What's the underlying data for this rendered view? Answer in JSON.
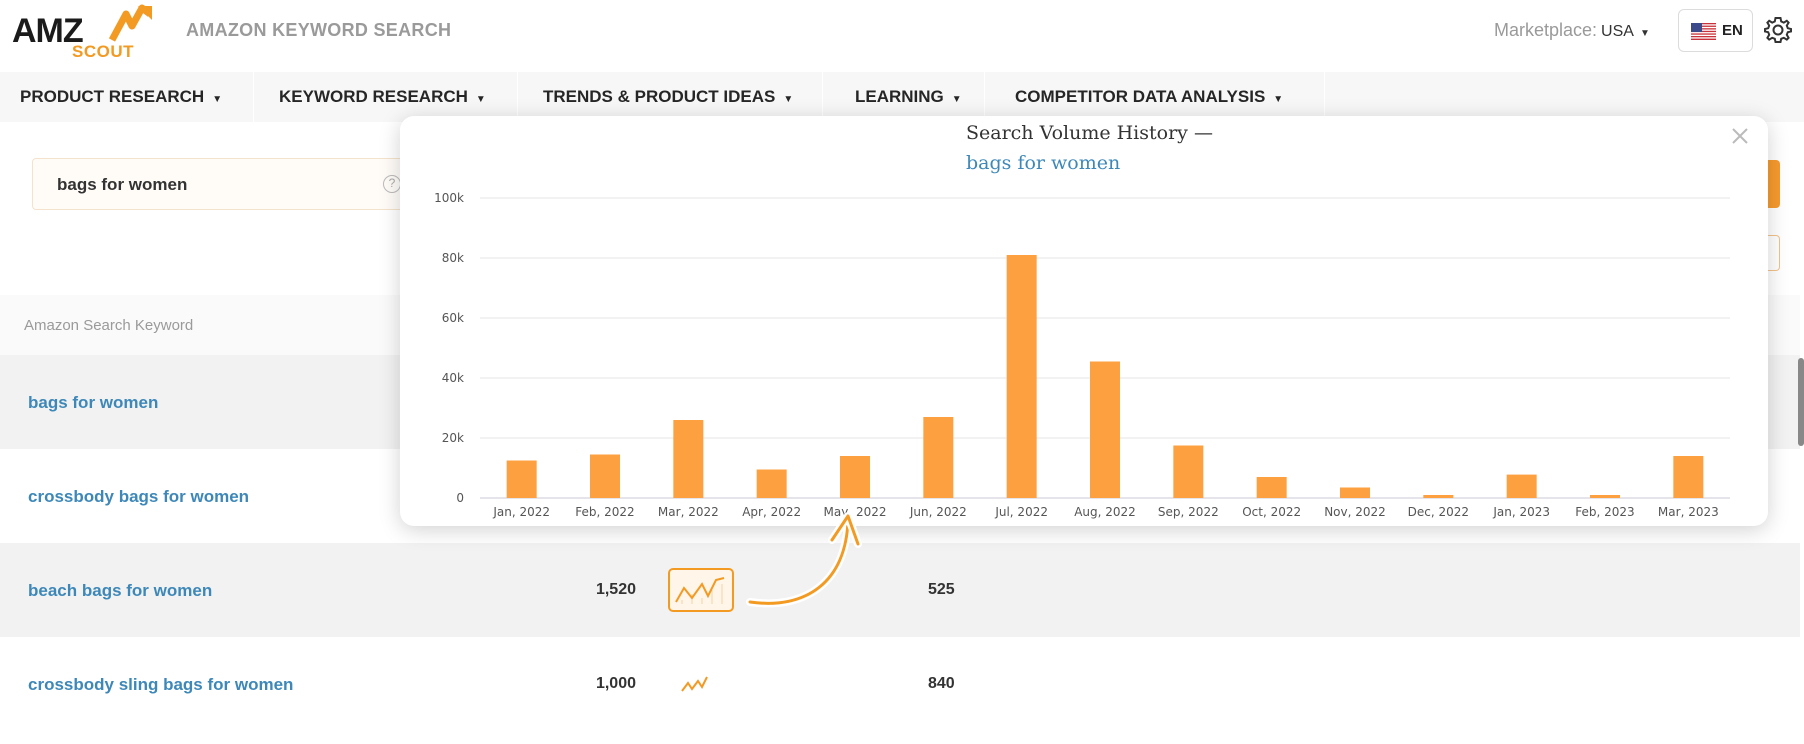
{
  "header": {
    "logo_amz": "AMZ",
    "logo_scout": "SCOUT",
    "app_title": "AMAZON KEYWORD SEARCH",
    "marketplace_label": "Marketplace:",
    "marketplace_value": "USA",
    "language": "EN",
    "icons": [
      "us-flag-icon",
      "gear-icon"
    ]
  },
  "nav": {
    "items": [
      {
        "label": "PRODUCT RESEARCH"
      },
      {
        "label": "KEYWORD RESEARCH"
      },
      {
        "label": "TRENDS & PRODUCT IDEAS"
      },
      {
        "label": "LEARNING"
      },
      {
        "label": "COMPETITOR DATA ANALYSIS"
      }
    ]
  },
  "search": {
    "value": "bags for women",
    "help": "?"
  },
  "table": {
    "column_header": "Amazon Search Keyword",
    "rows": [
      {
        "keyword": "bags for women",
        "volume": "",
        "value2": ""
      },
      {
        "keyword": "crossbody bags for women",
        "volume": "",
        "value2": ""
      },
      {
        "keyword": "beach bags for women",
        "volume": "1,520",
        "value2": "525"
      },
      {
        "keyword": "crossbody sling bags for women",
        "volume": "1,000",
        "value2": "840"
      }
    ]
  },
  "popup": {
    "title": "Search Volume History —",
    "keyword": "bags for women"
  },
  "colors": {
    "accent": "#f39a23",
    "bar": "#fca040",
    "link": "#3d88b9",
    "nav_bg": "#f7f7f7"
  },
  "chart_data": {
    "type": "bar",
    "title": "Search Volume History — bags for women",
    "categories": [
      "Jan, 2022",
      "Feb, 2022",
      "Mar, 2022",
      "Apr, 2022",
      "May, 2022",
      "Jun, 2022",
      "Jul, 2022",
      "Aug, 2022",
      "Sep, 2022",
      "Oct, 2022",
      "Nov, 2022",
      "Dec, 2022",
      "Jan, 2023",
      "Feb, 2023",
      "Mar, 2023"
    ],
    "values": [
      12500,
      14500,
      26000,
      9500,
      14000,
      27000,
      81000,
      45500,
      17500,
      7000,
      3500,
      1000,
      7800,
      1000,
      14000
    ],
    "yticks": [
      "0",
      "20k",
      "40k",
      "60k",
      "80k",
      "100k"
    ],
    "ylim": [
      0,
      100000
    ],
    "grid": true,
    "legend": "none"
  }
}
